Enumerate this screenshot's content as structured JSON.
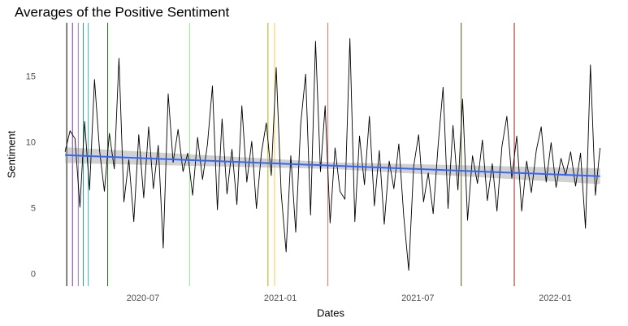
{
  "chart_data": {
    "type": "line",
    "title": "Averages of the Positive Sentiment",
    "xlabel": "Dates",
    "ylabel": "Sentiment",
    "xlim": [
      2020.128,
      2022.241
    ],
    "ylim": [
      -0.9,
      19.1
    ],
    "xticks": [
      {
        "value": 2020.5,
        "label": "2020-07"
      },
      {
        "value": 2021.0,
        "label": "2021-01"
      },
      {
        "value": 2021.5,
        "label": "2021-07"
      },
      {
        "value": 2022.0,
        "label": "2022-01"
      }
    ],
    "yticks": [
      0,
      5,
      10,
      15
    ],
    "grid": false,
    "series": [
      {
        "color": "#000000",
        "x": [
          2020.217,
          2020.235,
          2020.253,
          2020.271,
          2020.288,
          2020.306,
          2020.324,
          2020.342,
          2020.36,
          2020.378,
          2020.396,
          2020.413,
          2020.431,
          2020.449,
          2020.467,
          2020.485,
          2020.503,
          2020.521,
          2020.538,
          2020.556,
          2020.574,
          2020.592,
          2020.61,
          2020.628,
          2020.646,
          2020.663,
          2020.681,
          2020.699,
          2020.717,
          2020.735,
          2020.753,
          2020.771,
          2020.788,
          2020.806,
          2020.824,
          2020.842,
          2020.86,
          2020.878,
          2020.896,
          2020.913,
          2020.931,
          2020.949,
          2020.967,
          2020.985,
          2021.003,
          2021.021,
          2021.038,
          2021.056,
          2021.074,
          2021.092,
          2021.11,
          2021.128,
          2021.146,
          2021.163,
          2021.181,
          2021.199,
          2021.217,
          2021.235,
          2021.253,
          2021.271,
          2021.288,
          2021.306,
          2021.324,
          2021.342,
          2021.36,
          2021.378,
          2021.396,
          2021.413,
          2021.431,
          2021.449,
          2021.467,
          2021.485,
          2021.503,
          2021.521,
          2021.538,
          2021.556,
          2021.574,
          2021.592,
          2021.61,
          2021.628,
          2021.646,
          2021.663,
          2021.681,
          2021.699,
          2021.717,
          2021.735,
          2021.753,
          2021.771,
          2021.788,
          2021.806,
          2021.824,
          2021.842,
          2021.86,
          2021.878,
          2021.896,
          2021.913,
          2021.931,
          2021.949,
          2021.967,
          2021.985,
          2022.003,
          2022.021,
          2022.038,
          2022.056,
          2022.074,
          2022.092,
          2022.11,
          2022.128,
          2022.146,
          2022.163
        ],
        "values": [
          9.3,
          10.9,
          10.3,
          5.1,
          11.6,
          6.4,
          14.8,
          9.5,
          6.3,
          10.7,
          8.0,
          16.4,
          5.5,
          8.7,
          4.0,
          10.6,
          5.8,
          11.2,
          6.5,
          9.8,
          2.0,
          13.7,
          8.5,
          11.0,
          7.8,
          9.2,
          6.0,
          10.4,
          7.2,
          9.9,
          14.3,
          4.9,
          11.8,
          6.1,
          9.5,
          5.3,
          12.8,
          7.0,
          10.1,
          5.0,
          9.2,
          11.5,
          7.5,
          15.7,
          6.2,
          1.7,
          9.0,
          3.2,
          11.4,
          15.2,
          4.5,
          17.7,
          7.8,
          12.8,
          3.9,
          9.6,
          6.3,
          5.7,
          17.9,
          4.0,
          10.5,
          6.8,
          12.0,
          5.2,
          9.4,
          3.8,
          8.6,
          6.5,
          9.9,
          4.4,
          0.3,
          8.2,
          10.6,
          5.5,
          7.7,
          4.6,
          9.8,
          14.2,
          5.0,
          11.3,
          6.4,
          13.3,
          4.1,
          9.0,
          6.9,
          10.2,
          5.6,
          8.4,
          4.8,
          9.7,
          12.0,
          7.3,
          10.5,
          4.8,
          8.6,
          6.2,
          9.4,
          11.2,
          7.0,
          10.0,
          6.6,
          8.8,
          7.5,
          9.3,
          6.7,
          9.2,
          3.5,
          15.9,
          6.0,
          9.6
        ]
      }
    ],
    "trend": {
      "color": "#3366FF",
      "band_color": "#999999",
      "x": [
        2020.217,
        2021.19,
        2022.163
      ],
      "values": [
        9.05,
        8.25,
        7.45
      ],
      "lower": [
        8.45,
        8.0,
        6.85
      ],
      "upper": [
        9.65,
        8.5,
        8.05
      ]
    },
    "vlines": [
      {
        "x": 2020.223,
        "color": "#000000"
      },
      {
        "x": 2020.244,
        "color": "#7b3294"
      },
      {
        "x": 2020.265,
        "color": "#9e7bb5"
      },
      {
        "x": 2020.283,
        "color": "#1b9e9e"
      },
      {
        "x": 2020.301,
        "color": "#41b6c4"
      },
      {
        "x": 2020.372,
        "color": "#1a6b1a"
      },
      {
        "x": 2020.67,
        "color": "#90ee90"
      },
      {
        "x": 2020.955,
        "color": "#b8b000"
      },
      {
        "x": 2020.979,
        "color": "#f0d050"
      },
      {
        "x": 2021.173,
        "color": "#e07060"
      },
      {
        "x": 2021.658,
        "color": "#4a5e1a"
      },
      {
        "x": 2021.851,
        "color": "#a02020"
      }
    ]
  }
}
